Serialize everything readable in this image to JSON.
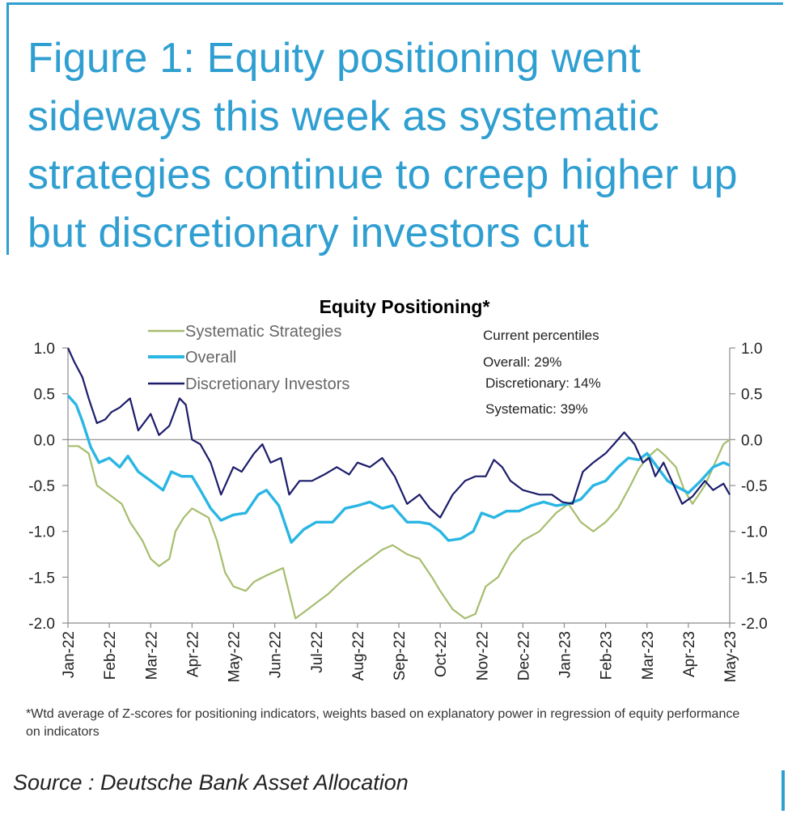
{
  "figure": {
    "title": "Figure 1: Equity positioning went sideways this week as systematic strategies continue to creep higher up but discretionary investors cut",
    "footnote": "*Wtd average of Z-scores for positioning indicators, weights based on explanatory power in regression of equity performance on indicators",
    "source": "Source : Deutsche Bank Asset Allocation"
  },
  "colors": {
    "title": "#2f9fd1",
    "systematic": "#a6bd6e",
    "overall": "#2ab6e3",
    "discretionary": "#1c1c6b"
  },
  "chart_data": {
    "type": "line",
    "title": "Equity Positioning*",
    "ylim": [
      -2.0,
      1.0
    ],
    "y_ticks": [
      "1.0",
      "0.5",
      "0.0",
      "-0.5",
      "-1.0",
      "-1.5",
      "-2.0"
    ],
    "y_tick_values": [
      1.0,
      0.5,
      0.0,
      -0.5,
      -1.0,
      -1.5,
      -2.0
    ],
    "x_tick_labels": [
      "Jan-22",
      "Feb-22",
      "Mar-22",
      "Apr-22",
      "May-22",
      "Jun-22",
      "Jul-22",
      "Aug-22",
      "Sep-22",
      "Oct-22",
      "Nov-22",
      "Dec-22",
      "Jan-23",
      "Feb-23",
      "Mar-23",
      "Apr-23",
      "May-23"
    ],
    "legend_position": "top-left",
    "grid": false,
    "series": [
      {
        "name": "Systematic Strategies",
        "color": "#a6bd6e",
        "points": [
          [
            0,
            -0.07
          ],
          [
            0.25,
            -0.07
          ],
          [
            0.5,
            -0.15
          ],
          [
            0.7,
            -0.5
          ],
          [
            1.0,
            -0.6
          ],
          [
            1.3,
            -0.7
          ],
          [
            1.5,
            -0.9
          ],
          [
            1.8,
            -1.1
          ],
          [
            2.0,
            -1.3
          ],
          [
            2.2,
            -1.38
          ],
          [
            2.45,
            -1.3
          ],
          [
            2.6,
            -1.0
          ],
          [
            2.8,
            -0.85
          ],
          [
            3.0,
            -0.75
          ],
          [
            3.4,
            -0.85
          ],
          [
            3.6,
            -1.1
          ],
          [
            3.8,
            -1.45
          ],
          [
            4.0,
            -1.6
          ],
          [
            4.3,
            -1.65
          ],
          [
            4.5,
            -1.55
          ],
          [
            4.8,
            -1.48
          ],
          [
            5.2,
            -1.4
          ],
          [
            5.5,
            -1.95
          ],
          [
            5.8,
            -1.85
          ],
          [
            6.0,
            -1.78
          ],
          [
            6.3,
            -1.68
          ],
          [
            6.6,
            -1.55
          ],
          [
            7.0,
            -1.4
          ],
          [
            7.3,
            -1.3
          ],
          [
            7.6,
            -1.2
          ],
          [
            7.85,
            -1.15
          ],
          [
            8.2,
            -1.25
          ],
          [
            8.5,
            -1.3
          ],
          [
            8.8,
            -1.5
          ],
          [
            9.0,
            -1.65
          ],
          [
            9.3,
            -1.85
          ],
          [
            9.6,
            -1.95
          ],
          [
            9.85,
            -1.9
          ],
          [
            10.1,
            -1.6
          ],
          [
            10.4,
            -1.5
          ],
          [
            10.7,
            -1.25
          ],
          [
            11.0,
            -1.1
          ],
          [
            11.4,
            -1.0
          ],
          [
            11.8,
            -0.8
          ],
          [
            12.1,
            -0.7
          ],
          [
            12.4,
            -0.9
          ],
          [
            12.7,
            -1.0
          ],
          [
            13.0,
            -0.9
          ],
          [
            13.3,
            -0.75
          ],
          [
            13.6,
            -0.5
          ],
          [
            13.8,
            -0.32
          ],
          [
            14.0,
            -0.2
          ],
          [
            14.25,
            -0.1
          ],
          [
            14.45,
            -0.18
          ],
          [
            14.7,
            -0.3
          ],
          [
            14.9,
            -0.55
          ],
          [
            15.1,
            -0.7
          ],
          [
            15.4,
            -0.5
          ],
          [
            15.6,
            -0.3
          ],
          [
            15.85,
            -0.05
          ],
          [
            16.0,
            0.0
          ]
        ]
      },
      {
        "name": "Overall",
        "color": "#2ab6e3",
        "points": [
          [
            0,
            0.48
          ],
          [
            0.2,
            0.38
          ],
          [
            0.35,
            0.2
          ],
          [
            0.55,
            -0.08
          ],
          [
            0.75,
            -0.25
          ],
          [
            1.0,
            -0.2
          ],
          [
            1.25,
            -0.3
          ],
          [
            1.45,
            -0.18
          ],
          [
            1.7,
            -0.35
          ],
          [
            2.0,
            -0.45
          ],
          [
            2.3,
            -0.55
          ],
          [
            2.5,
            -0.35
          ],
          [
            2.75,
            -0.4
          ],
          [
            3.0,
            -0.4
          ],
          [
            3.2,
            -0.55
          ],
          [
            3.45,
            -0.75
          ],
          [
            3.7,
            -0.88
          ],
          [
            4.0,
            -0.82
          ],
          [
            4.3,
            -0.8
          ],
          [
            4.6,
            -0.6
          ],
          [
            4.8,
            -0.55
          ],
          [
            5.1,
            -0.72
          ],
          [
            5.4,
            -1.12
          ],
          [
            5.7,
            -0.98
          ],
          [
            6.0,
            -0.9
          ],
          [
            6.4,
            -0.9
          ],
          [
            6.7,
            -0.75
          ],
          [
            7.0,
            -0.72
          ],
          [
            7.3,
            -0.68
          ],
          [
            7.6,
            -0.75
          ],
          [
            7.85,
            -0.72
          ],
          [
            8.2,
            -0.9
          ],
          [
            8.5,
            -0.9
          ],
          [
            8.75,
            -0.92
          ],
          [
            9.0,
            -1.0
          ],
          [
            9.2,
            -1.1
          ],
          [
            9.5,
            -1.08
          ],
          [
            9.8,
            -1.0
          ],
          [
            10.0,
            -0.8
          ],
          [
            10.3,
            -0.85
          ],
          [
            10.6,
            -0.78
          ],
          [
            10.9,
            -0.78
          ],
          [
            11.2,
            -0.72
          ],
          [
            11.5,
            -0.68
          ],
          [
            11.8,
            -0.72
          ],
          [
            12.1,
            -0.7
          ],
          [
            12.4,
            -0.65
          ],
          [
            12.7,
            -0.5
          ],
          [
            13.0,
            -0.45
          ],
          [
            13.3,
            -0.3
          ],
          [
            13.55,
            -0.2
          ],
          [
            13.8,
            -0.22
          ],
          [
            14.0,
            -0.15
          ],
          [
            14.25,
            -0.3
          ],
          [
            14.5,
            -0.45
          ],
          [
            14.75,
            -0.52
          ],
          [
            15.0,
            -0.58
          ],
          [
            15.3,
            -0.45
          ],
          [
            15.6,
            -0.3
          ],
          [
            15.85,
            -0.25
          ],
          [
            16.0,
            -0.28
          ]
        ]
      },
      {
        "name": "Discretionary Investors",
        "color": "#1c1c6b",
        "points": [
          [
            0,
            1.0
          ],
          [
            0.15,
            0.85
          ],
          [
            0.35,
            0.68
          ],
          [
            0.5,
            0.45
          ],
          [
            0.7,
            0.18
          ],
          [
            0.9,
            0.22
          ],
          [
            1.05,
            0.3
          ],
          [
            1.25,
            0.35
          ],
          [
            1.5,
            0.45
          ],
          [
            1.7,
            0.1
          ],
          [
            2.0,
            0.28
          ],
          [
            2.2,
            0.05
          ],
          [
            2.45,
            0.15
          ],
          [
            2.7,
            0.45
          ],
          [
            2.85,
            0.38
          ],
          [
            3.0,
            0.0
          ],
          [
            3.2,
            -0.05
          ],
          [
            3.45,
            -0.25
          ],
          [
            3.7,
            -0.6
          ],
          [
            4.0,
            -0.3
          ],
          [
            4.2,
            -0.35
          ],
          [
            4.5,
            -0.15
          ],
          [
            4.7,
            -0.05
          ],
          [
            4.9,
            -0.25
          ],
          [
            5.15,
            -0.2
          ],
          [
            5.35,
            -0.6
          ],
          [
            5.6,
            -0.45
          ],
          [
            5.9,
            -0.45
          ],
          [
            6.2,
            -0.38
          ],
          [
            6.5,
            -0.3
          ],
          [
            6.8,
            -0.38
          ],
          [
            7.0,
            -0.25
          ],
          [
            7.3,
            -0.3
          ],
          [
            7.6,
            -0.2
          ],
          [
            7.9,
            -0.4
          ],
          [
            8.2,
            -0.7
          ],
          [
            8.5,
            -0.6
          ],
          [
            8.75,
            -0.75
          ],
          [
            9.0,
            -0.85
          ],
          [
            9.3,
            -0.6
          ],
          [
            9.6,
            -0.45
          ],
          [
            9.85,
            -0.4
          ],
          [
            10.1,
            -0.4
          ],
          [
            10.3,
            -0.22
          ],
          [
            10.5,
            -0.3
          ],
          [
            10.7,
            -0.45
          ],
          [
            11.0,
            -0.55
          ],
          [
            11.4,
            -0.6
          ],
          [
            11.7,
            -0.6
          ],
          [
            11.95,
            -0.68
          ],
          [
            12.2,
            -0.7
          ],
          [
            12.45,
            -0.35
          ],
          [
            12.7,
            -0.25
          ],
          [
            13.0,
            -0.15
          ],
          [
            13.2,
            -0.05
          ],
          [
            13.45,
            0.08
          ],
          [
            13.7,
            -0.05
          ],
          [
            13.9,
            -0.25
          ],
          [
            14.05,
            -0.2
          ],
          [
            14.2,
            -0.4
          ],
          [
            14.4,
            -0.25
          ],
          [
            14.6,
            -0.45
          ],
          [
            14.85,
            -0.7
          ],
          [
            15.1,
            -0.62
          ],
          [
            15.4,
            -0.45
          ],
          [
            15.6,
            -0.55
          ],
          [
            15.85,
            -0.48
          ],
          [
            16.0,
            -0.6
          ]
        ]
      }
    ],
    "annotations": {
      "heading": "Current percentiles",
      "items": [
        "Overall: 29%",
        "Discretionary: 14%",
        "Systematic: 39%"
      ]
    }
  }
}
